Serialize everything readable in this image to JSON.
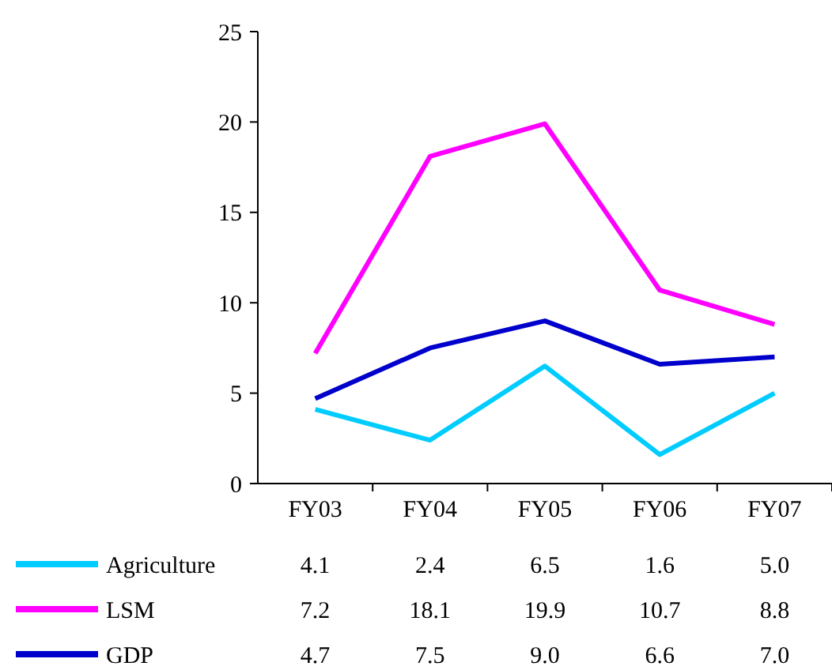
{
  "chart_data": {
    "type": "line",
    "categories": [
      "FY03",
      "FY04",
      "FY05",
      "FY06",
      "FY07"
    ],
    "series": [
      {
        "name": "Agriculture",
        "color": "#00ccff",
        "values": [
          4.1,
          2.4,
          6.5,
          1.6,
          5.0
        ],
        "value_labels": [
          "4.1",
          "2.4",
          "6.5",
          "1.6",
          "5.0"
        ]
      },
      {
        "name": "LSM",
        "color": "#ff00ff",
        "values": [
          7.2,
          18.1,
          19.9,
          10.7,
          8.8
        ],
        "value_labels": [
          "7.2",
          "18.1",
          "19.9",
          "10.7",
          "8.8"
        ]
      },
      {
        "name": "GDP",
        "color": "#0000cc",
        "values": [
          4.7,
          7.5,
          9.0,
          6.6,
          7.0
        ],
        "value_labels": [
          "4.7",
          "7.5",
          "9.0",
          "6.6",
          "7.0"
        ]
      }
    ],
    "ylim": [
      0,
      25
    ],
    "yticks": [
      0,
      5,
      10,
      15,
      20,
      25
    ],
    "grid": false,
    "legend": "bottom",
    "marker": "none",
    "line_style": "solid"
  }
}
